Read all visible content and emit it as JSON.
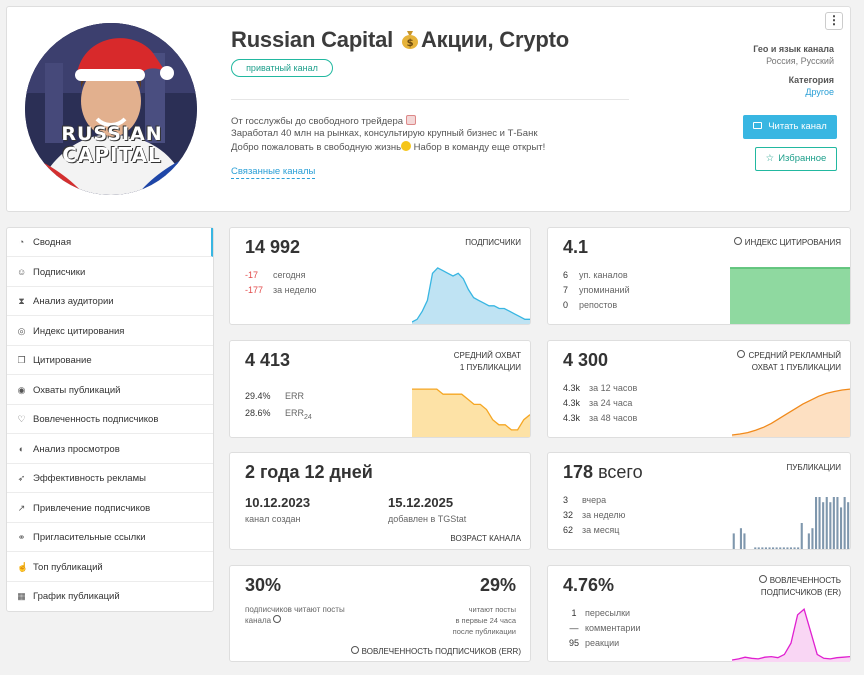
{
  "channel": {
    "title": "Russian Capital",
    "title_suffix": "Акции, Crypto",
    "badge": "приватный канал",
    "description": [
      "От госслужбы до свободного трейдера",
      "Заработал 40 млн на рынках, консультирую крупный бизнес и Т-Банк",
      "Добро пожаловать в свободную жизнь",
      "Набор в команду еще открыт!"
    ],
    "related_link": "Связанные каналы",
    "avatar_text_1": "RUSSIAN",
    "avatar_text_2": "CAPITAL",
    "geo_label": "Гео и язык канала",
    "geo_value": "Россия, Русский",
    "category_label": "Категория",
    "category_value": "Другое",
    "read_button": "Читать канал",
    "fav_button": "Избранное",
    "menu_icon": "⋮"
  },
  "sidebar": {
    "items": [
      {
        "label": "Сводная",
        "icon": "◔"
      },
      {
        "label": "Подписчики",
        "icon": "☺"
      },
      {
        "label": "Анализ аудитории",
        "icon": "⧗"
      },
      {
        "label": "Индекс цитирования",
        "icon": "◎"
      },
      {
        "label": "Цитирование",
        "icon": "❐"
      },
      {
        "label": "Охваты публикаций",
        "icon": "◉"
      },
      {
        "label": "Вовлеченность подписчиков",
        "icon": "♡"
      },
      {
        "label": "Анализ просмотров",
        "icon": "◐"
      },
      {
        "label": "Эффективность рекламы",
        "icon": "➶"
      },
      {
        "label": "Привлечение подписчиков",
        "icon": "↗"
      },
      {
        "label": "Пригласительные ссылки",
        "icon": "⚭"
      },
      {
        "label": "Топ публикаций",
        "icon": "☝"
      },
      {
        "label": "График публикаций",
        "icon": "▦"
      }
    ]
  },
  "cards": {
    "subscribers": {
      "value": "14 992",
      "caption": "ПОДПИСЧИКИ",
      "d1": "-17",
      "d1_label": "сегодня",
      "d2": "-177",
      "d2_label": "за неделю"
    },
    "citation": {
      "value": "4.1",
      "caption": "ИНДЕКС ЦИТИРОВАНИЯ",
      "r1": "6",
      "r1_label": "уп. каналов",
      "r2": "7",
      "r2_label": "упоминаний",
      "r3": "0",
      "r3_label": "репостов"
    },
    "reach": {
      "value": "4 413",
      "caption1": "СРЕДНИЙ ОХВАТ",
      "caption2": "1 ПУБЛИКАЦИИ",
      "err": "29.4%",
      "err_label": "ERR",
      "err24": "28.6%",
      "err24_label": "ERR",
      "err24_sub": "24"
    },
    "ad_reach": {
      "value": "4 300",
      "caption1": "СРЕДНИЙ РЕКЛАМНЫЙ",
      "caption2": "ОХВАТ 1 ПУБЛИКАЦИИ",
      "r1": "4.3k",
      "r1_label": "за 12 часов",
      "r2": "4.3k",
      "r2_label": "за 24 часа",
      "r3": "4.3k",
      "r3_label": "за 48 часов"
    },
    "age": {
      "value": "2 года 12 дней",
      "created": "10.12.2023",
      "created_label": "канал создан",
      "added": "15.12.2025",
      "added_label": "добавлен в TGStat",
      "caption": "ВОЗРАСТ КАНАЛА"
    },
    "posts": {
      "value": "178",
      "value_suffix": "всего",
      "caption": "ПУБЛИКАЦИИ",
      "r1": "3",
      "r1_label": "вчера",
      "r2": "32",
      "r2_label": "за неделю",
      "r3": "62",
      "r3_label": "за месяц"
    },
    "engagement": {
      "v1": "30%",
      "v1_label1": "подписчиков читают посты",
      "v1_label2": "канала",
      "v2": "29%",
      "v2_label1": "читают посты",
      "v2_label2": "в первые 24 часа",
      "v2_label3": "после публикации",
      "caption": "ВОВЛЕЧЕННОСТЬ ПОДПИСЧИКОВ (ERR)"
    },
    "er": {
      "value": "4.76%",
      "caption1": "ВОВЛЕЧЕННОСТЬ",
      "caption2": "ПОДПИСЧИКОВ (ER)",
      "r1": "1",
      "r1_label": "пересылки",
      "r2": "—",
      "r2_label": "комментарии",
      "r3": "95",
      "r3_label": "реакции"
    }
  },
  "colors": {
    "accent": "#38b6e2",
    "teal": "#22b8a0",
    "red": "#e24b4b",
    "blue_area": "#bfe3f3",
    "green_area": "#8fd9a0",
    "orange_line": "#f5a623",
    "magenta": "#e020d0",
    "bars": "#7f97ad"
  },
  "chart_data": [
    {
      "type": "area",
      "name": "subscribers",
      "values": [
        0,
        1,
        4,
        8,
        18,
        20,
        19,
        18,
        17,
        18,
        16,
        12,
        9,
        8,
        7,
        6,
        6,
        5,
        5,
        4,
        3,
        2,
        1,
        1
      ]
    },
    {
      "type": "area",
      "name": "citation",
      "values": [
        7,
        7,
        7,
        7,
        7,
        7,
        7,
        7,
        7,
        7,
        7,
        7,
        7,
        7,
        7,
        7
      ]
    },
    {
      "type": "area",
      "name": "reach",
      "values": [
        9,
        9,
        9,
        9,
        9,
        8,
        8,
        8,
        8,
        7,
        6,
        6,
        5,
        3,
        2,
        2,
        1,
        1,
        3,
        4
      ]
    },
    {
      "type": "area",
      "name": "ad_reach",
      "values": [
        0,
        0.2,
        0.5,
        1,
        1.6,
        2.4,
        3.4,
        4.4,
        5.4,
        6.4,
        7.2,
        8,
        8.6,
        9,
        9.3,
        9.5
      ]
    },
    {
      "type": "bar",
      "name": "posts",
      "values": [
        3,
        0,
        4,
        3,
        0,
        0,
        0.3,
        0.3,
        0.3,
        0.3,
        0.3,
        0.3,
        0.3,
        0.3,
        0.3,
        0.3,
        0.3,
        0.3,
        0.3,
        5,
        0,
        3,
        4,
        10,
        10,
        9,
        10,
        9,
        10,
        10,
        8,
        10,
        9
      ]
    },
    {
      "type": "line",
      "name": "er",
      "values": [
        0,
        0.2,
        0.5,
        0.3,
        0.2,
        0.5,
        0.6,
        0.4,
        1,
        3,
        8,
        9,
        5,
        1,
        0.3,
        0.2,
        0.4,
        0.5,
        0.6
      ]
    }
  ]
}
